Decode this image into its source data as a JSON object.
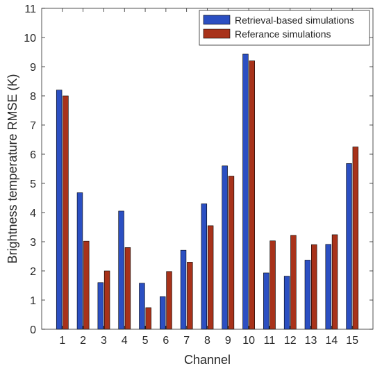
{
  "chart_data": {
    "type": "bar",
    "title": "",
    "xlabel": "Channel",
    "ylabel": "Brightness temperature RMSE (K)",
    "ylim": [
      0,
      11
    ],
    "yticks": [
      0,
      1,
      2,
      3,
      4,
      5,
      6,
      7,
      8,
      9,
      10,
      11
    ],
    "categories": [
      "1",
      "2",
      "3",
      "4",
      "5",
      "6",
      "7",
      "8",
      "9",
      "10",
      "11",
      "12",
      "13",
      "14",
      "15"
    ],
    "series": [
      {
        "name": "Retrieval-based simulations",
        "color": "#2b4fc2",
        "values": [
          8.2,
          4.68,
          1.6,
          4.05,
          1.58,
          1.12,
          2.71,
          4.3,
          5.6,
          9.43,
          1.93,
          1.82,
          2.37,
          2.91,
          5.68
        ]
      },
      {
        "name": "Referance simulations",
        "color": "#a8321a",
        "values": [
          8.0,
          3.02,
          2.0,
          2.8,
          0.74,
          1.98,
          2.3,
          3.55,
          5.25,
          9.2,
          3.03,
          3.22,
          2.9,
          3.24,
          6.25
        ]
      }
    ],
    "legend_position": "top-right",
    "grid": false
  }
}
